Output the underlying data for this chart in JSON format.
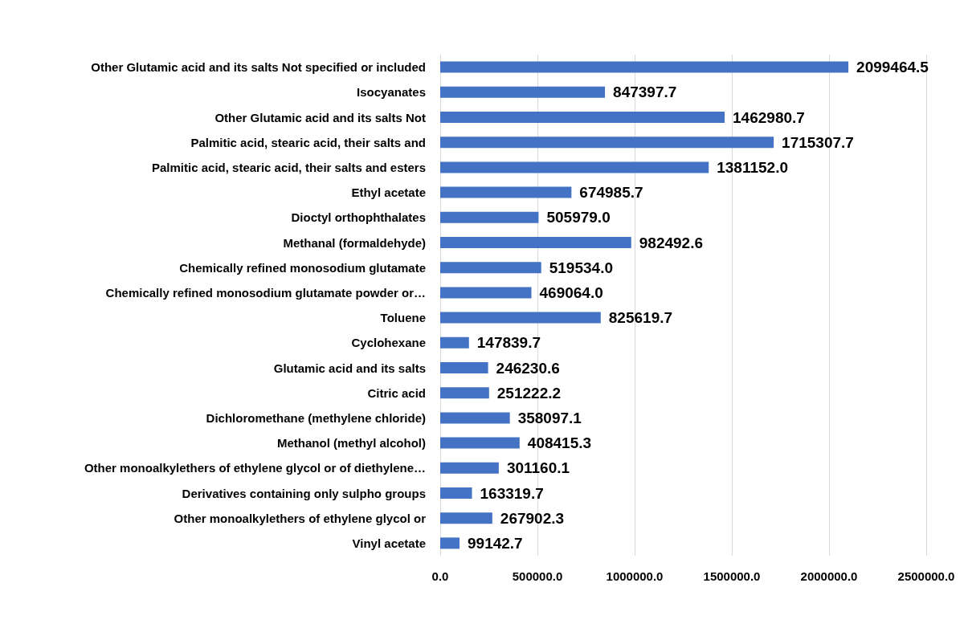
{
  "chart_data": {
    "type": "bar",
    "orientation": "horizontal",
    "categories": [
      "Other Glutamic acid and its salts Not specified or included",
      "Isocyanates",
      "Other Glutamic acid and its salts Not",
      "Palmitic acid, stearic acid, their salts and",
      "Palmitic acid, stearic acid, their salts and esters",
      "Ethyl acetate",
      "Dioctyl orthophthalates",
      "Methanal (formaldehyde)",
      "Chemically refined monosodium glutamate",
      "Chemically refined monosodium glutamate powder or…",
      "Toluene",
      "Cyclohexane",
      "Glutamic acid and its salts",
      "Citric acid",
      "Dichloromethane (methylene chloride)",
      "Methanol (methyl alcohol)",
      "Other monoalkylethers of ethylene glycol or of diethylene…",
      "Derivatives containing only sulpho groups",
      "Other monoalkylethers of ethylene glycol or",
      "Vinyl acetate"
    ],
    "values": [
      2099464.5,
      847397.7,
      1462980.7,
      1715307.7,
      1381152.0,
      674985.7,
      505979.0,
      982492.6,
      519534.0,
      469064.0,
      825619.7,
      147839.7,
      246230.6,
      251222.2,
      358097.1,
      408415.3,
      301160.1,
      163319.7,
      267902.3,
      99142.7
    ],
    "value_labels": [
      "2099464.5",
      "847397.7",
      "1462980.7",
      "1715307.7",
      "1381152.0",
      "674985.7",
      "505979.0",
      "982492.6",
      "519534.0",
      "469064.0",
      "825619.7",
      "147839.7",
      "246230.6",
      "251222.2",
      "358097.1",
      "408415.3",
      "301160.1",
      "163319.7",
      "267902.3",
      "99142.7"
    ],
    "color": "#4472c4",
    "xlim": [
      0,
      2500000
    ],
    "xticks": [
      {
        "value": 0,
        "label": "0.0"
      },
      {
        "value": 500000,
        "label": "500000.0"
      },
      {
        "value": 1000000,
        "label": "1000000.0"
      },
      {
        "value": 1500000,
        "label": "1500000.0"
      },
      {
        "value": 2000000,
        "label": "2000000.0"
      },
      {
        "value": 2500000,
        "label": "2500000.0"
      }
    ],
    "grid": "x"
  }
}
